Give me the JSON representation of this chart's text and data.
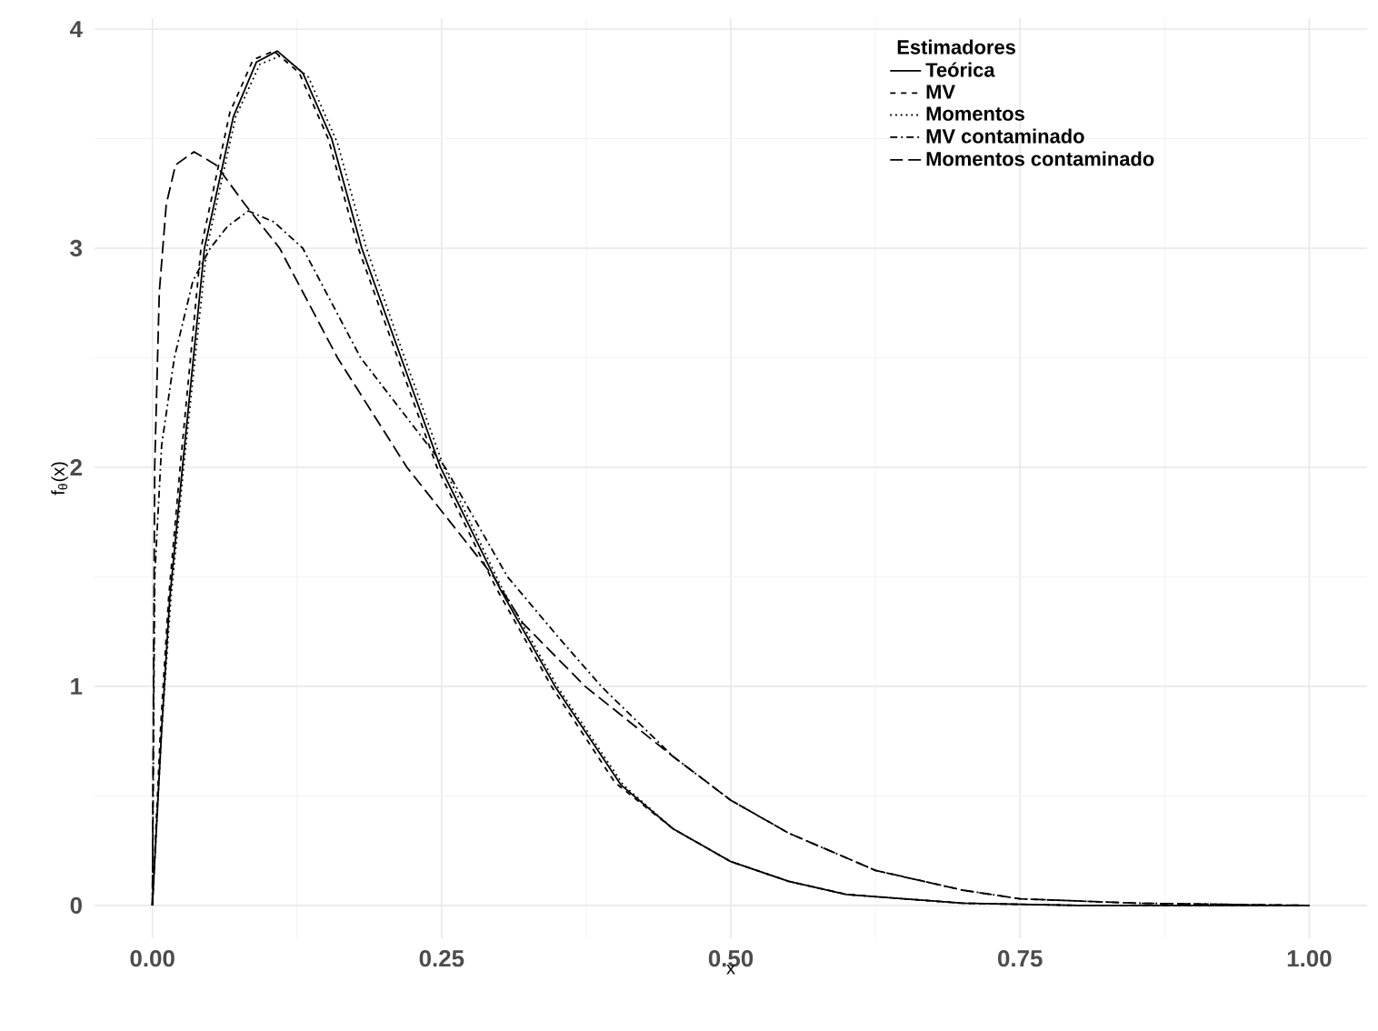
{
  "chart_data": {
    "type": "line",
    "xlabel": "x",
    "ylabel": "f$_{θ}$(x)",
    "legend_title": "Estimadores",
    "legend": "top right",
    "grid": true,
    "marker": "none",
    "xlim": [
      -0.05,
      1.05
    ],
    "ylim": [
      -0.15,
      4.05
    ],
    "xticks": [
      {
        "value": 0,
        "label": "0.00"
      },
      {
        "value": 0.25,
        "label": "0.25"
      },
      {
        "value": 0.5,
        "label": "0.50"
      },
      {
        "value": 0.75,
        "label": "0.75"
      },
      {
        "value": 1,
        "label": "1.00"
      }
    ],
    "yticks": [
      0,
      1,
      2,
      3,
      4
    ],
    "series": [
      {
        "name": "Teórica",
        "color": "#000000",
        "line_style": "solid",
        "x": [
          0,
          0.008,
          0.015,
          0.026,
          0.045,
          0.07,
          0.09,
          0.108,
          0.13,
          0.155,
          0.181,
          0.215,
          0.249,
          0.3,
          0.348,
          0.405,
          0.45,
          0.5,
          0.55,
          0.6,
          0.7,
          0.8,
          0.9,
          1
        ],
        "values": [
          0,
          0.8,
          1.4,
          2,
          3,
          3.6,
          3.85,
          3.9,
          3.8,
          3.5,
          3,
          2.5,
          2,
          1.45,
          1,
          0.55,
          0.35,
          0.2,
          0.11,
          0.05,
          0.01,
          0,
          0,
          0
        ]
      },
      {
        "name": "MV",
        "color": "#000000",
        "line_style": "dashed",
        "x": [
          0,
          0.007,
          0.014,
          0.024,
          0.042,
          0.067,
          0.087,
          0.105,
          0.127,
          0.152,
          0.178,
          0.212,
          0.246,
          0.297,
          0.345,
          0.4,
          0.45,
          0.5,
          0.55,
          0.6,
          0.7,
          0.8,
          0.9,
          1
        ],
        "values": [
          0,
          0.8,
          1.4,
          2,
          3,
          3.62,
          3.86,
          3.9,
          3.8,
          3.5,
          3,
          2.5,
          2,
          1.45,
          1,
          0.56,
          0.35,
          0.2,
          0.11,
          0.05,
          0.01,
          0,
          0,
          0
        ]
      },
      {
        "name": "Momentos",
        "color": "#000000",
        "line_style": "dotted",
        "x": [
          0,
          0.008,
          0.016,
          0.027,
          0.047,
          0.072,
          0.093,
          0.112,
          0.135,
          0.16,
          0.185,
          0.218,
          0.252,
          0.302,
          0.35,
          0.407,
          0.45,
          0.5,
          0.55,
          0.6,
          0.7,
          0.8,
          0.9,
          1
        ],
        "values": [
          0,
          0.8,
          1.4,
          2,
          3,
          3.6,
          3.84,
          3.88,
          3.78,
          3.48,
          3,
          2.5,
          2,
          1.45,
          1,
          0.55,
          0.35,
          0.2,
          0.11,
          0.05,
          0.01,
          0,
          0,
          0
        ]
      },
      {
        "name": "MV contaminado",
        "color": "#000000",
        "line_style": "dashdot",
        "x": [
          0,
          0.002,
          0.008,
          0.019,
          0.035,
          0.05,
          0.065,
          0.083,
          0.105,
          0.13,
          0.18,
          0.253,
          0.307,
          0.35,
          0.388,
          0.45,
          0.5,
          0.55,
          0.625,
          0.7,
          0.75,
          0.85,
          1
        ],
        "values": [
          0,
          1.5,
          2.1,
          2.5,
          2.85,
          3,
          3.1,
          3.17,
          3.12,
          3,
          2.5,
          2,
          1.5,
          1.23,
          1,
          0.68,
          0.48,
          0.33,
          0.16,
          0.07,
          0.03,
          0.01,
          0
        ]
      },
      {
        "name": "Momentos contaminado",
        "color": "#000000",
        "line_style": "longdash",
        "x": [
          0,
          0.001,
          0.002,
          0.006,
          0.012,
          0.02,
          0.036,
          0.055,
          0.08,
          0.11,
          0.16,
          0.22,
          0.295,
          0.32,
          0.374,
          0.45,
          0.5,
          0.55,
          0.625,
          0.7,
          0.75,
          0.85,
          1
        ],
        "values": [
          0,
          1,
          2,
          2.8,
          3.2,
          3.38,
          3.44,
          3.38,
          3.2,
          3,
          2.5,
          2,
          1.5,
          1.29,
          1,
          0.68,
          0.48,
          0.33,
          0.16,
          0.07,
          0.03,
          0.01,
          0
        ]
      }
    ]
  }
}
